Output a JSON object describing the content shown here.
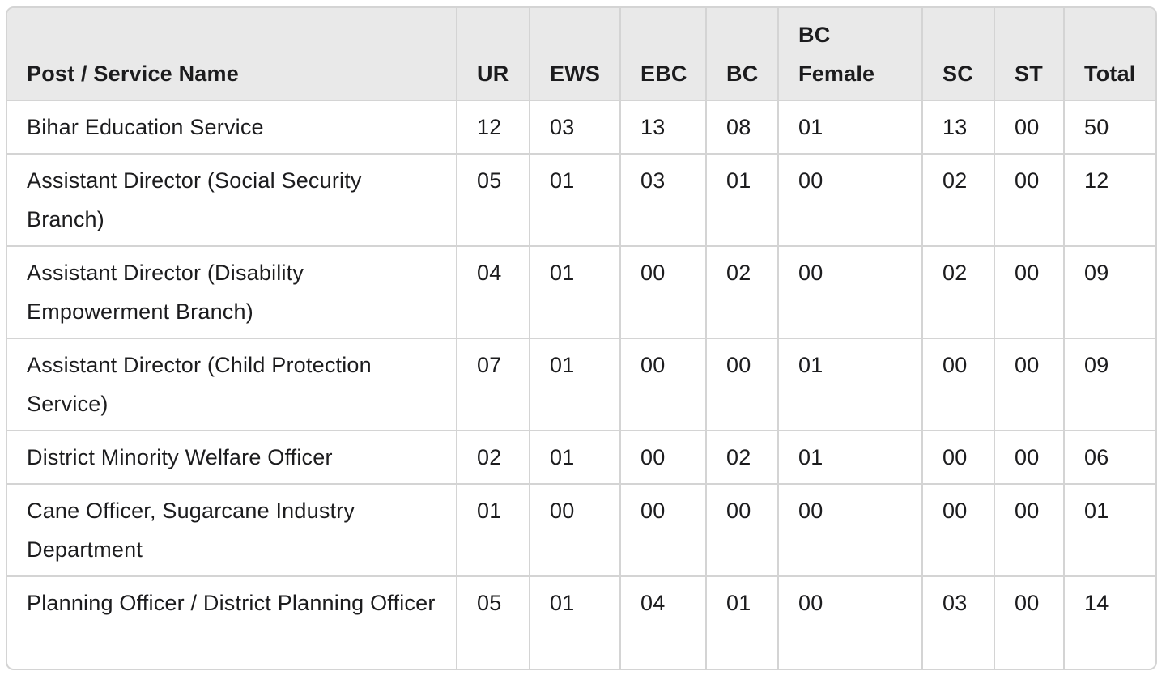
{
  "table": {
    "headers": [
      "Post / Service Name",
      "UR",
      "EWS",
      "EBC",
      "BC",
      "BC Female",
      "SC",
      "ST",
      "Total"
    ],
    "rows": [
      [
        "Bihar Education Service",
        "12",
        "03",
        "13",
        "08",
        "01",
        "13",
        "00",
        "50"
      ],
      [
        "Assistant Director (Social Security Branch)",
        "05",
        "01",
        "03",
        "01",
        "00",
        "02",
        "00",
        "12"
      ],
      [
        "Assistant Director (Disability Empowerment Branch)",
        "04",
        "01",
        "00",
        "02",
        "00",
        "02",
        "00",
        "09"
      ],
      [
        "Assistant Director (Child Protection Service)",
        "07",
        "01",
        "00",
        "00",
        "01",
        "00",
        "00",
        "09"
      ],
      [
        "District Minority Welfare Officer",
        "02",
        "01",
        "00",
        "02",
        "01",
        "00",
        "00",
        "06"
      ],
      [
        "Cane Officer, Sugarcane Industry Department",
        "01",
        "00",
        "00",
        "00",
        "00",
        "00",
        "00",
        "01"
      ],
      [
        "Planning Officer / District Planning Officer",
        "05",
        "01",
        "04",
        "01",
        "00",
        "03",
        "00",
        "14"
      ]
    ]
  }
}
